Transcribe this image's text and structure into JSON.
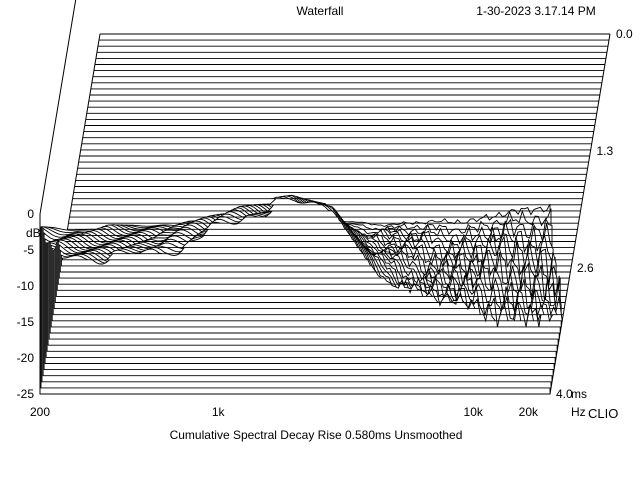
{
  "header": {
    "title": "Waterfall",
    "timestamp": "1-30-2023 3.17.14 PM"
  },
  "footer": {
    "caption": "Cumulative Spectral Decay   Rise 0.580ms   Unsmoothed",
    "brand": "CLIO"
  },
  "chart_data": {
    "type": "area",
    "title": "Waterfall",
    "subtitle": "Cumulative Spectral Decay   Rise 0.580ms   Unsmoothed",
    "xlabel": "Hz",
    "ylabel": "dB",
    "zlabel": "ms",
    "xscale": "log",
    "xlim": [
      200,
      20000
    ],
    "ylim": [
      -25,
      0
    ],
    "zlim": [
      0,
      4.0
    ],
    "x_ticks": [
      "200",
      "1k",
      "10k",
      "20k"
    ],
    "y_ticks": [
      "0",
      "-5",
      "-10",
      "-15",
      "-20",
      "-25"
    ],
    "z_ticks": [
      "0.0",
      "1.3",
      "2.6",
      "4.0"
    ],
    "slice_count": 60,
    "decay_ms_to_floor": [
      {
        "freq_hz": 500,
        "ms": 1.5
      },
      {
        "freq_hz": 1000,
        "ms": 1.9
      },
      {
        "freq_hz": 1500,
        "ms": 2.0
      },
      {
        "freq_hz": 2200,
        "ms": 1.9
      },
      {
        "freq_hz": 3500,
        "ms": 1.3
      },
      {
        "freq_hz": 6000,
        "ms": 1.0
      },
      {
        "freq_hz": 10000,
        "ms": 0.8
      },
      {
        "freq_hz": 18000,
        "ms": 0.7
      }
    ],
    "initial_response_db": [
      {
        "freq_hz": 300,
        "db": -2.1
      },
      {
        "freq_hz": 700,
        "db": -1.5
      },
      {
        "freq_hz": 1500,
        "db": -1.0
      },
      {
        "freq_hz": 2200,
        "db": -0.6
      },
      {
        "freq_hz": 5000,
        "db": -1.5
      },
      {
        "freq_hz": 10000,
        "db": -0.8
      },
      {
        "freq_hz": 20000,
        "db": 1.0
      }
    ]
  }
}
